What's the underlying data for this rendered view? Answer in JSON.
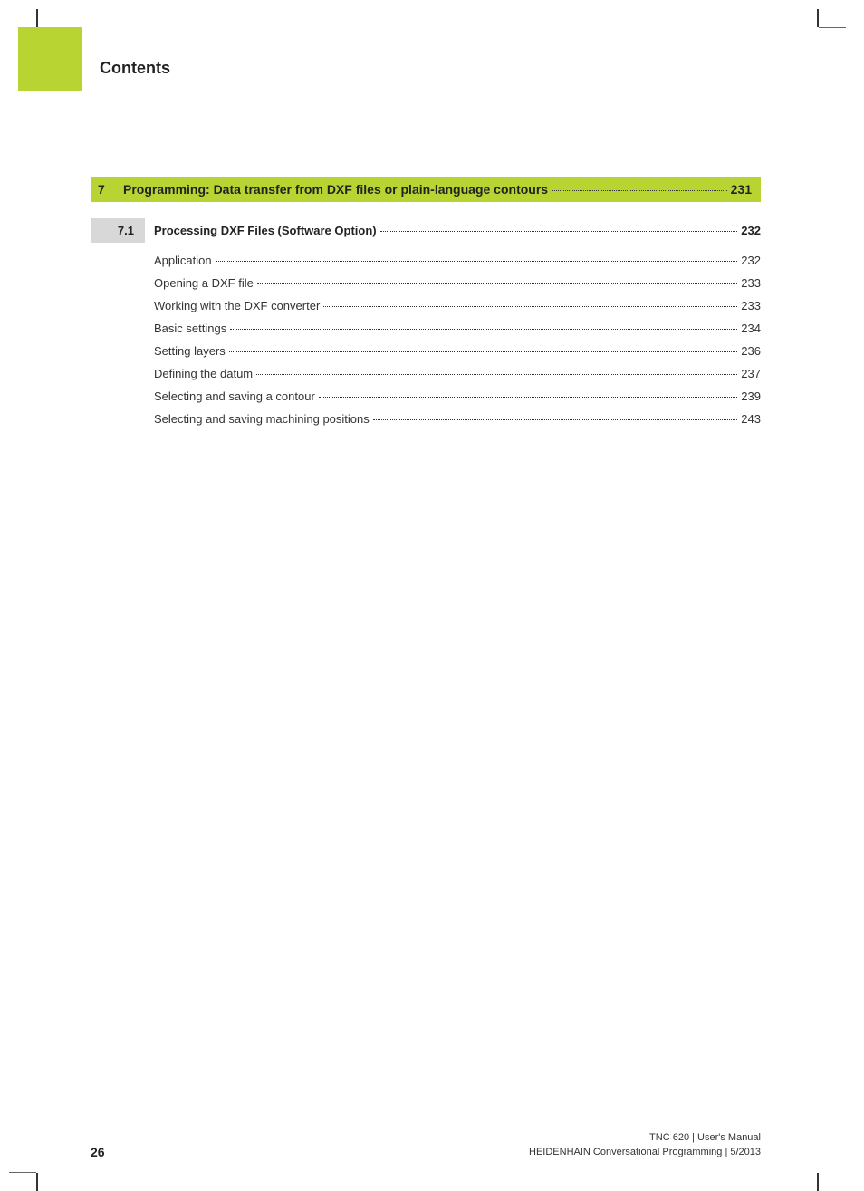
{
  "header": {
    "title": "Contents"
  },
  "chapter": {
    "number": "7",
    "title": "Programming: Data transfer from DXF files or plain-language contours",
    "page": "231"
  },
  "section": {
    "number": "7.1",
    "title": "Processing DXF Files (Software Option)",
    "page": "232"
  },
  "subs": [
    {
      "title": "Application",
      "page": "232"
    },
    {
      "title": "Opening a DXF file",
      "page": "233"
    },
    {
      "title": "Working with the DXF converter",
      "page": "233"
    },
    {
      "title": "Basic settings",
      "page": "234"
    },
    {
      "title": "Setting layers",
      "page": "236"
    },
    {
      "title": "Defining the datum",
      "page": "237"
    },
    {
      "title": "Selecting and saving a contour",
      "page": "239"
    },
    {
      "title": "Selecting and saving machining positions",
      "page": "243"
    }
  ],
  "footer": {
    "page_num": "26",
    "line1": "TNC 620 | User's Manual",
    "line2": "HEIDENHAIN Conversational Programming | 5/2013"
  },
  "colors": {
    "accent": "#b7d432",
    "gray": "#d8d8d8",
    "text": "#222222",
    "subtext": "#333333"
  },
  "typography": {
    "heading_fontsize": 18,
    "chapter_fontsize": 14,
    "section_fontsize": 13,
    "sub_fontsize": 13,
    "footer_fontsize": 11
  }
}
